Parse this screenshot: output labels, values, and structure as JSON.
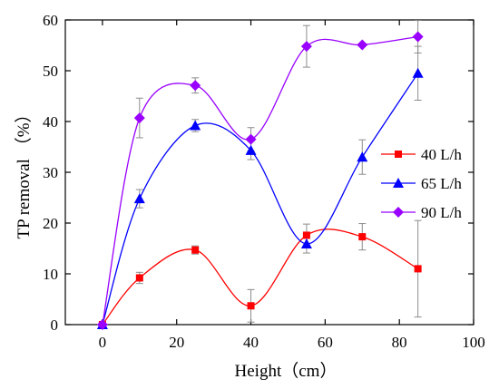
{
  "chart_data": {
    "type": "scatter",
    "xlabel": "Height（cm）",
    "ylabel": "TP removal （%）",
    "xlim": [
      -10,
      100
    ],
    "ylim": [
      0,
      60
    ],
    "xticks": [
      "0",
      "20",
      "40",
      "60",
      "80",
      "100"
    ],
    "yticks": [
      "0",
      "10",
      "20",
      "30",
      "40",
      "50",
      "60"
    ],
    "x": [
      0,
      10,
      25,
      40,
      55,
      70,
      85
    ],
    "grid": false,
    "legend_position": "right",
    "smooth_lines": true,
    "series": [
      {
        "name": "40 L/h",
        "color": "#ff0000",
        "marker": "square",
        "values": [
          0,
          9.2,
          14.7,
          3.7,
          17.6,
          17.3,
          11.0
        ],
        "errors": [
          0,
          1.1,
          0.8,
          3.2,
          2.2,
          2.6,
          9.5
        ]
      },
      {
        "name": "65 L/h",
        "color": "#0000ff",
        "marker": "triangle",
        "values": [
          0,
          24.8,
          39.2,
          34.3,
          15.9,
          33.0,
          49.5
        ],
        "errors": [
          0,
          1.8,
          1.2,
          1.8,
          1.8,
          3.4,
          5.3
        ]
      },
      {
        "name": "90 L/h",
        "color": "#9900ff",
        "marker": "diamond",
        "values": [
          0,
          40.7,
          47.1,
          36.5,
          54.8,
          55.1,
          56.7
        ],
        "errors": [
          0,
          3.9,
          1.5,
          2.3,
          4.1,
          0,
          3.2
        ]
      }
    ]
  }
}
